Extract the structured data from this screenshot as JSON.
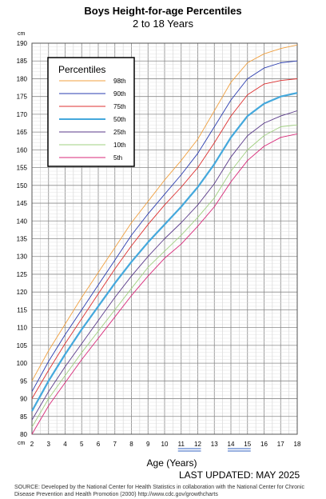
{
  "title": "Boys Height-for-age Percentiles",
  "subtitle": "2 to 18 Years",
  "footer": {
    "updated": "LAST UPDATED: MAY 2025",
    "source": "SOURCE: Developed by the National Center for Health Statistics in collaboration with the National Center for Chronic Disease Prevention and Health Promotion (2000) http://www.cdc.gov/growthcharts"
  },
  "chart_data": {
    "type": "line",
    "title": "Boys Height-for-age Percentiles",
    "subtitle": "2 to 18 Years",
    "xlabel": "Age (Years)",
    "ylabel": "cm",
    "xlim": [
      2,
      18
    ],
    "ylim": [
      80,
      190
    ],
    "xticks": [
      2,
      3,
      4,
      5,
      6,
      7,
      8,
      9,
      10,
      11,
      12,
      13,
      14,
      15,
      16,
      17,
      18
    ],
    "yticks": [
      80,
      85,
      90,
      95,
      100,
      105,
      110,
      115,
      120,
      125,
      130,
      135,
      140,
      145,
      150,
      155,
      160,
      165,
      170,
      175,
      180,
      185,
      190
    ],
    "underlined_xticks": [
      11,
      12,
      14,
      15
    ],
    "grid": true,
    "legend": {
      "title": "Percentiles",
      "position": "top-left"
    },
    "x": [
      2,
      3,
      4,
      5,
      6,
      7,
      8,
      9,
      10,
      11,
      12,
      13,
      14,
      15,
      16,
      17,
      18
    ],
    "series": [
      {
        "name": "98th",
        "color": "#f0a040",
        "values": [
          95.0,
          103.5,
          111.0,
          118.5,
          125.5,
          132.5,
          139.5,
          145.5,
          151.5,
          157.0,
          163.0,
          171.0,
          179.0,
          184.5,
          187.0,
          188.5,
          189.5
        ]
      },
      {
        "name": "90th",
        "color": "#2a3cb0",
        "values": [
          92.0,
          100.5,
          108.0,
          115.0,
          122.0,
          129.0,
          136.0,
          142.0,
          147.5,
          153.0,
          159.0,
          166.5,
          174.0,
          180.0,
          183.0,
          184.5,
          185.0
        ]
      },
      {
        "name": "75th",
        "color": "#dd3030",
        "values": [
          90.0,
          98.0,
          105.5,
          112.5,
          119.5,
          126.5,
          133.0,
          139.0,
          144.5,
          149.5,
          155.0,
          162.0,
          169.5,
          175.5,
          178.5,
          179.5,
          180.0
        ]
      },
      {
        "name": "50th",
        "color": "#44a8dc",
        "values": [
          86.5,
          95.0,
          102.5,
          109.5,
          116.0,
          122.5,
          128.5,
          134.0,
          139.0,
          144.0,
          149.5,
          156.0,
          163.5,
          169.5,
          173.0,
          175.0,
          176.0
        ]
      },
      {
        "name": "25th",
        "color": "#5a3a8a",
        "values": [
          84.0,
          92.0,
          99.0,
          105.5,
          112.0,
          118.5,
          124.5,
          130.0,
          135.0,
          139.5,
          144.5,
          150.5,
          158.0,
          164.0,
          167.5,
          169.5,
          171.0
        ]
      },
      {
        "name": "10th",
        "color": "#a0d080",
        "values": [
          82.0,
          90.0,
          96.5,
          103.0,
          109.0,
          115.0,
          121.0,
          127.0,
          131.5,
          136.0,
          141.0,
          146.5,
          154.0,
          160.0,
          164.0,
          166.5,
          167.0
        ]
      },
      {
        "name": "5th",
        "color": "#d82878",
        "values": [
          80.0,
          88.0,
          94.5,
          101.0,
          107.0,
          113.0,
          119.0,
          124.5,
          129.5,
          133.5,
          138.5,
          144.0,
          151.0,
          157.0,
          161.0,
          163.5,
          164.5
        ]
      }
    ]
  }
}
